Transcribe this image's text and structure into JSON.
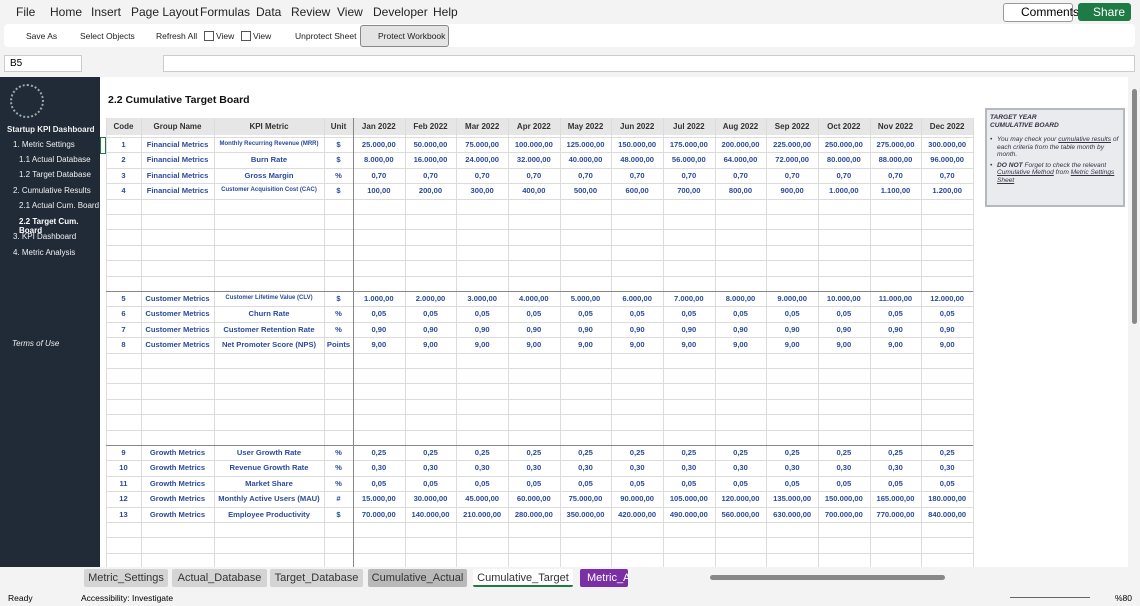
{
  "menu": [
    "File",
    "Home",
    "Insert",
    "Page Layout",
    "Formulas",
    "Data",
    "Review",
    "View",
    "Developer",
    "Help"
  ],
  "buttons": {
    "comments": "Comments",
    "share": "Share"
  },
  "toolbar": [
    "Save As",
    "Select Objects",
    "Refresh All",
    "View",
    "View",
    "Unprotect Sheet",
    "Protect Workbook"
  ],
  "name_box": "B5",
  "sidebar": {
    "title": "Startup KPI Dashboard",
    "items": [
      "1. Metric Settings",
      "1.1 Actual Database",
      "1.2 Target Database",
      "2. Cumulative Results",
      "2.1 Actual Cum. Board",
      "2.2 Target Cum. Board",
      "3. KPI Dashboard",
      "4. Metric Analysis"
    ],
    "footer": "Terms of Use"
  },
  "sheet_title": "2.2 Cumulative Target Board",
  "table": {
    "headers": [
      "Code",
      "Group Name",
      "KPI Metric",
      "Unit",
      "Jan 2022",
      "Feb 2022",
      "Mar 2022",
      "Apr 2022",
      "May 2022",
      "Jun 2022",
      "Jul 2022",
      "Aug 2022",
      "Sep 2022",
      "Oct 2022",
      "Nov 2022",
      "Dec 2022"
    ],
    "blocks": [
      [
        [
          "1",
          "Financial Metrics",
          "Monthly Recurring Revenue (MRR)",
          "$",
          "25.000,00",
          "50.000,00",
          "75.000,00",
          "100.000,00",
          "125.000,00",
          "150.000,00",
          "175.000,00",
          "200.000,00",
          "225.000,00",
          "250.000,00",
          "275.000,00",
          "300.000,00"
        ],
        [
          "2",
          "Financial Metrics",
          "Burn Rate",
          "$",
          "8.000,00",
          "16.000,00",
          "24.000,00",
          "32.000,00",
          "40.000,00",
          "48.000,00",
          "56.000,00",
          "64.000,00",
          "72.000,00",
          "80.000,00",
          "88.000,00",
          "96.000,00"
        ],
        [
          "3",
          "Financial Metrics",
          "Gross Margin",
          "%",
          "0,70",
          "0,70",
          "0,70",
          "0,70",
          "0,70",
          "0,70",
          "0,70",
          "0,70",
          "0,70",
          "0,70",
          "0,70",
          "0,70"
        ],
        [
          "4",
          "Financial Metrics",
          "Customer Acquisition Cost (CAC)",
          "$",
          "100,00",
          "200,00",
          "300,00",
          "400,00",
          "500,00",
          "600,00",
          "700,00",
          "800,00",
          "900,00",
          "1.000,00",
          "1.100,00",
          "1.200,00"
        ]
      ],
      [
        [
          "5",
          "Customer Metrics",
          "Customer Lifetime Value (CLV)",
          "$",
          "1.000,00",
          "2.000,00",
          "3.000,00",
          "4.000,00",
          "5.000,00",
          "6.000,00",
          "7.000,00",
          "8.000,00",
          "9.000,00",
          "10.000,00",
          "11.000,00",
          "12.000,00"
        ],
        [
          "6",
          "Customer Metrics",
          "Churn Rate",
          "%",
          "0,05",
          "0,05",
          "0,05",
          "0,05",
          "0,05",
          "0,05",
          "0,05",
          "0,05",
          "0,05",
          "0,05",
          "0,05",
          "0,05"
        ],
        [
          "7",
          "Customer Metrics",
          "Customer Retention Rate",
          "%",
          "0,90",
          "0,90",
          "0,90",
          "0,90",
          "0,90",
          "0,90",
          "0,90",
          "0,90",
          "0,90",
          "0,90",
          "0,90",
          "0,90"
        ],
        [
          "8",
          "Customer Metrics",
          "Net Promoter Score (NPS)",
          "Points",
          "9,00",
          "9,00",
          "9,00",
          "9,00",
          "9,00",
          "9,00",
          "9,00",
          "9,00",
          "9,00",
          "9,00",
          "9,00",
          "9,00"
        ]
      ],
      [
        [
          "9",
          "Growth Metrics",
          "User Growth Rate",
          "%",
          "0,25",
          "0,25",
          "0,25",
          "0,25",
          "0,25",
          "0,25",
          "0,25",
          "0,25",
          "0,25",
          "0,25",
          "0,25",
          "0,25"
        ],
        [
          "10",
          "Growth Metrics",
          "Revenue Growth Rate",
          "%",
          "0,30",
          "0,30",
          "0,30",
          "0,30",
          "0,30",
          "0,30",
          "0,30",
          "0,30",
          "0,30",
          "0,30",
          "0,30",
          "0,30"
        ],
        [
          "11",
          "Growth Metrics",
          "Market Share",
          "%",
          "0,05",
          "0,05",
          "0,05",
          "0,05",
          "0,05",
          "0,05",
          "0,05",
          "0,05",
          "0,05",
          "0,05",
          "0,05",
          "0,05"
        ],
        [
          "12",
          "Growth Metrics",
          "Monthly Active Users (MAU)",
          "#",
          "15.000,00",
          "30.000,00",
          "45.000,00",
          "60.000,00",
          "75.000,00",
          "90.000,00",
          "105.000,00",
          "120.000,00",
          "135.000,00",
          "150.000,00",
          "165.000,00",
          "180.000,00"
        ],
        [
          "13",
          "Growth Metrics",
          "Employee Productivity",
          "$",
          "70.000,00",
          "140.000,00",
          "210.000,00",
          "280.000,00",
          "350.000,00",
          "420.000,00",
          "490.000,00",
          "560.000,00",
          "630.000,00",
          "700.000,00",
          "770.000,00",
          "840.000,00"
        ]
      ]
    ]
  },
  "note": {
    "title": [
      "TARGET YEAR",
      "CUMULATIVE BOARD"
    ],
    "bullets": [
      [
        "You may check your ",
        "cumulative results",
        " of each criteria from the table month by month."
      ],
      [
        "DO NOT",
        " Forget to check the relevant ",
        "Cumulative Method",
        " from ",
        "Metric Settings Sheet"
      ]
    ]
  },
  "tabs": [
    "Metric_Settings",
    "Actual_Database",
    "Target_Database",
    "Cumulative_Actual",
    "Cumulative_Target",
    "Metric_A"
  ],
  "status": {
    "ready": "Ready",
    "accessibility": "Accessibility: Investigate",
    "zoom": "%80"
  }
}
